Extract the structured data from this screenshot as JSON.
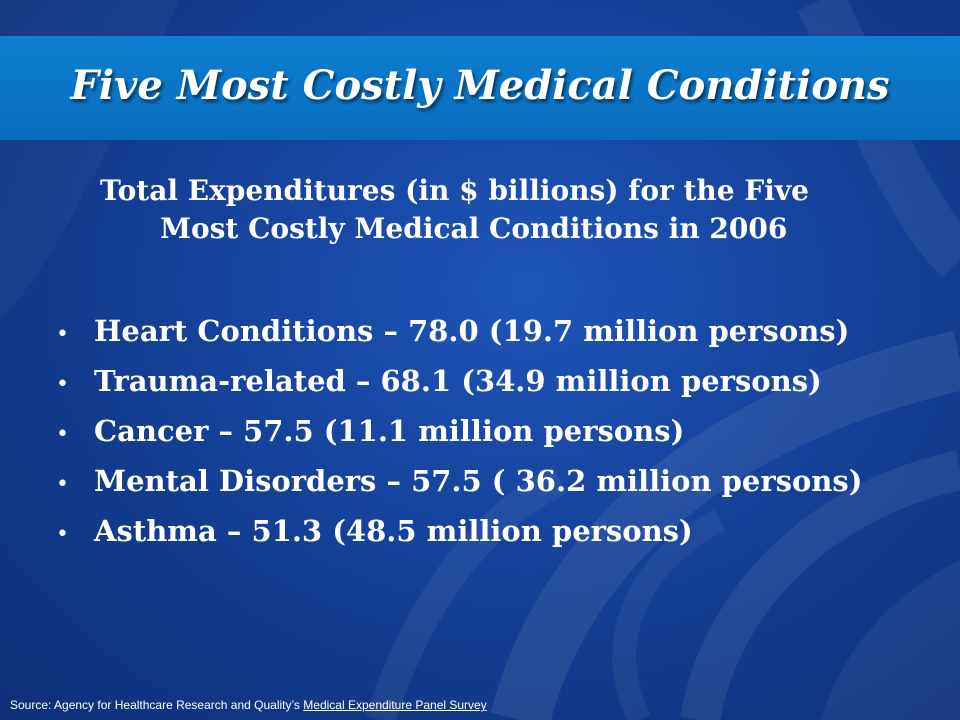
{
  "slide": {
    "title": "Five Most Costly Medical Conditions",
    "subtitle_line1": "Total Expenditures (in $ billions) for the Five",
    "subtitle_line2": "Most Costly Medical  Conditions in 2006",
    "bullet_glyph": "•",
    "bullets": [
      "Heart Conditions – 78.0  (19.7 million persons)",
      "Trauma-related – 68.1  (34.9 million persons)",
      "Cancer – 57.5 (11.1 million persons)",
      "Mental Disorders – 57.5 ( 36.2 million persons)",
      "Asthma – 51.3 (48.5 million persons)"
    ],
    "source_prefix": "Source: Agency for Healthcare Research and Quality’s ",
    "source_link": "Medical Expenditure Panel Survey"
  },
  "colors": {
    "background": "#1745a0",
    "title_band": "#0a74c6",
    "text": "#ffffff"
  }
}
